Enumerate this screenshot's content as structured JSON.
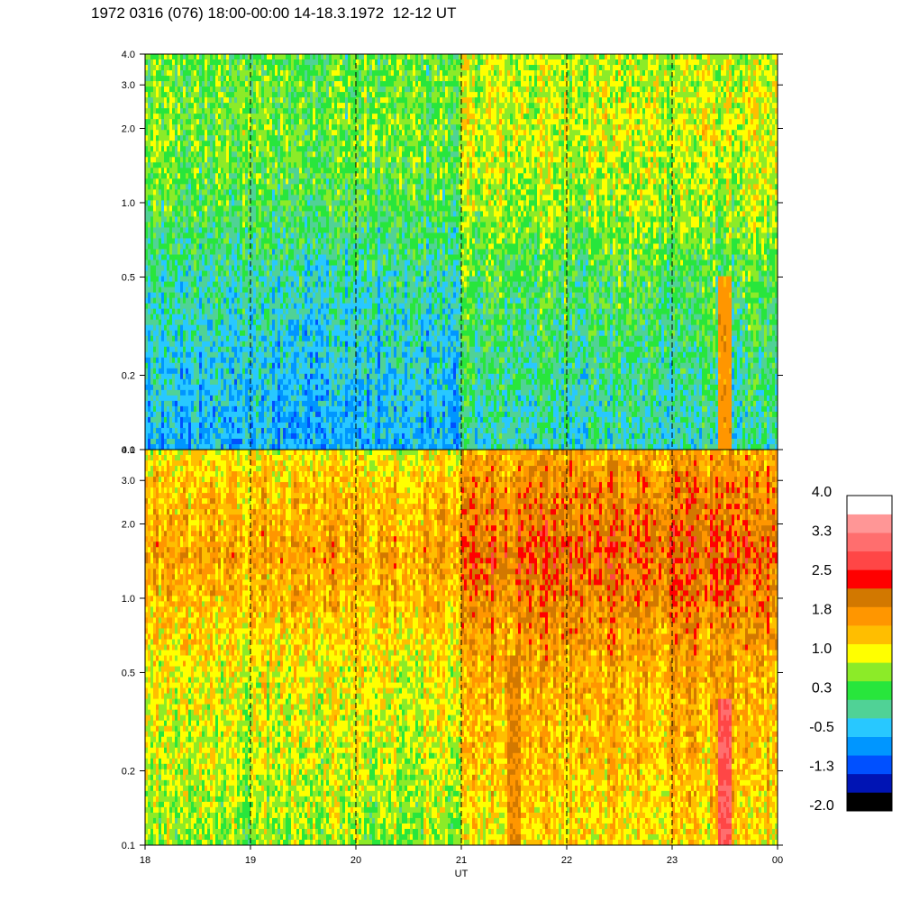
{
  "title": "1972 0316 (076) 18:00-00:00 14-18.3.1972  12-12 UT",
  "chart_data": {
    "type": "heatmap",
    "title": "1972 0316 (076) 18:00-00:00 14-18.3.1972  12-12 UT",
    "xlabel": "UT",
    "ylabel": "",
    "x_ticks": [
      "18",
      "19",
      "20",
      "21",
      "22",
      "23",
      "00"
    ],
    "xlim": [
      18,
      24
    ],
    "y_scale": "log",
    "ylim": [
      0.1,
      4.0
    ],
    "y_ticks": [
      "0.1",
      "0.2",
      "0.5",
      "1.0",
      "2.0",
      "3.0",
      "4.0"
    ],
    "y_tick_values": [
      0.1,
      0.2,
      0.5,
      1.0,
      2.0,
      3.0,
      4.0
    ],
    "dashed_gridlines_x": [
      19,
      20,
      21,
      22,
      23
    ],
    "panels": [
      {
        "name": "top",
        "typical_level_by_frequency": [
          {
            "y": 4.0,
            "level": 0.6
          },
          {
            "y": 2.0,
            "level": 0.7
          },
          {
            "y": 1.0,
            "level": 0.5
          },
          {
            "y": 0.5,
            "level": 0.1
          },
          {
            "y": 0.2,
            "level": -0.2
          },
          {
            "y": 0.1,
            "level": -0.4
          }
        ],
        "segment_offsets": [
          {
            "x_start": 18,
            "x_end": 21,
            "offset": -0.2
          },
          {
            "x_start": 21,
            "x_end": 24,
            "offset": 0.2
          }
        ],
        "bright_events": [
          {
            "x": 23.5,
            "y_min": 0.1,
            "y_max": 0.5,
            "level": 1.7
          }
        ]
      },
      {
        "name": "bottom",
        "typical_level_by_frequency": [
          {
            "y": 4.0,
            "level": 1.2
          },
          {
            "y": 3.0,
            "level": 1.5
          },
          {
            "y": 1.5,
            "level": 1.8
          },
          {
            "y": 1.0,
            "level": 1.6
          },
          {
            "y": 0.5,
            "level": 1.2
          },
          {
            "y": 0.2,
            "level": 1.0
          },
          {
            "y": 0.1,
            "level": 0.8
          }
        ],
        "segment_offsets": [
          {
            "x_start": 18,
            "x_end": 21,
            "offset": -0.2
          },
          {
            "x_start": 21,
            "x_end": 24,
            "offset": 0.35
          }
        ],
        "bright_events": [
          {
            "x": 23.5,
            "y_min": 0.1,
            "y_max": 0.4,
            "level": 2.9
          },
          {
            "x": 21.5,
            "y_min": 0.1,
            "y_max": 0.6,
            "level": 1.9
          }
        ]
      }
    ],
    "colorbar": {
      "labels": [
        "4.0",
        "3.3",
        "2.5",
        "1.8",
        "1.0",
        "0.3",
        "-0.5",
        "-1.3",
        "-2.0"
      ],
      "min": -2.0,
      "max": 4.0,
      "colors": [
        "#000000",
        "#0014b4",
        "#0050ff",
        "#0096ff",
        "#28c8ff",
        "#50d296",
        "#28e63c",
        "#8ceb28",
        "#ffff00",
        "#ffbe00",
        "#ff9600",
        "#d27800",
        "#ff0000",
        "#ff4646",
        "#ff6e6e",
        "#ff9696",
        "#ffffff"
      ]
    }
  }
}
